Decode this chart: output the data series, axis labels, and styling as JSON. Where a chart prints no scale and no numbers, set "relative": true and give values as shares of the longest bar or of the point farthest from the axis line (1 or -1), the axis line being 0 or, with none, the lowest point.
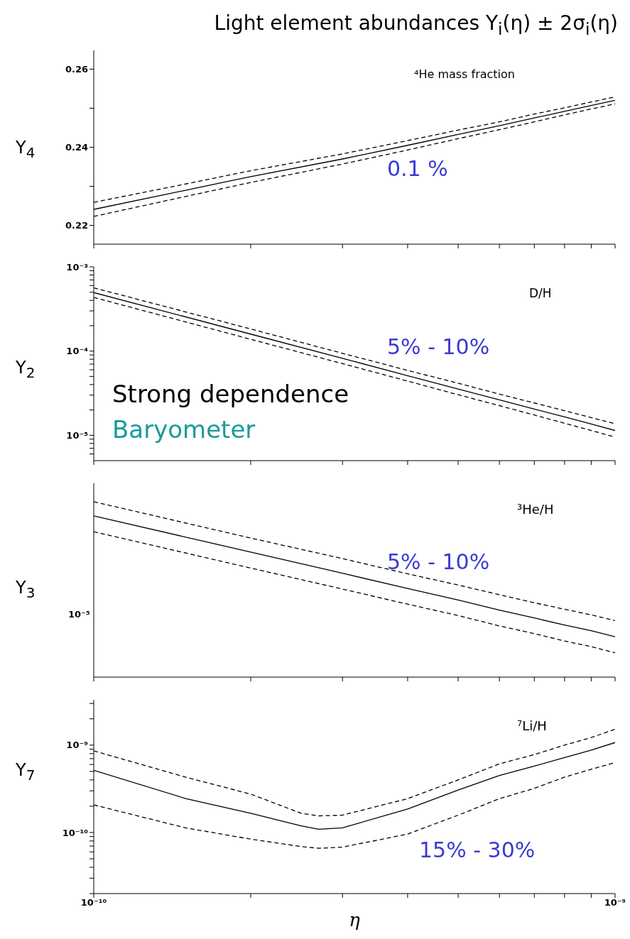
{
  "chart_data": [
    {
      "type": "line",
      "title": "Light element abundances  Y$_{i}$(η) ± 2σ$_{i}$(η)",
      "ylabel": "Y$_{4}$",
      "annotations": [
        "⁴He mass fraction",
        "0.1 %"
      ],
      "log": "x",
      "marker": "none",
      "line_style": "solid",
      "tick_labels": "y",
      "x": [
        1e-10,
        1.5e-10,
        2e-10,
        3e-10,
        4e-10,
        5e-10,
        6e-10,
        7e-10,
        8e-10,
        9e-10,
        1e-09
      ],
      "series": [
        {
          "color": "#000000",
          "values": [
            0.2241,
            0.229,
            0.2325,
            0.237,
            0.2405,
            0.2433,
            0.2455,
            0.2475,
            0.2492,
            0.2507,
            0.252
          ]
        },
        {
          "color": "#000000",
          "line_style": "dashed",
          "values": [
            0.2259,
            0.2306,
            0.234,
            0.2383,
            0.2417,
            0.2444,
            0.2465,
            0.2485,
            0.2501,
            0.2516,
            0.2529
          ]
        },
        {
          "color": "#000000",
          "line_style": "dashed",
          "values": [
            0.2223,
            0.2274,
            0.231,
            0.2357,
            0.2393,
            0.2422,
            0.2445,
            0.2465,
            0.2483,
            0.2498,
            0.2511
          ]
        }
      ],
      "xlim": [
        1e-10,
        1e-09
      ],
      "xticks": [
        {
          "value": 1e-10,
          "label": null
        },
        {
          "value": 2e-10,
          "label": null
        },
        {
          "value": 3e-10,
          "label": null
        },
        {
          "value": 4e-10,
          "label": null
        },
        {
          "value": 5e-10,
          "label": null
        },
        {
          "value": 6e-10,
          "label": null
        },
        {
          "value": 7e-10,
          "label": null
        },
        {
          "value": 8e-10,
          "label": null
        },
        {
          "value": 9e-10,
          "label": null
        },
        {
          "value": 1e-09,
          "label": null
        }
      ],
      "ylim": [
        0.2152,
        0.2648
      ],
      "yticks": [
        0.22,
        {
          "value": 0.23,
          "label": null
        },
        0.24,
        {
          "value": 0.25,
          "label": null
        },
        0.26
      ]
    },
    {
      "type": "line",
      "ylabel": "Y$_{2}$",
      "annotations": [
        "D/H",
        "5% - 10%",
        "Strong dependence",
        "Baryometer"
      ],
      "log": "xy",
      "marker": "none",
      "line_style": "solid",
      "tick_labels": "y",
      "x": [
        1e-10,
        2e-10,
        3e-10,
        4e-10,
        5e-10,
        6e-10,
        7e-10,
        8e-10,
        9e-10,
        1e-09
      ],
      "series": [
        {
          "color": "#000000",
          "values": [
            0.000495,
            0.000159,
            8.2e-05,
            5.1e-05,
            3.55e-05,
            2.63e-05,
            2.05e-05,
            1.65e-05,
            1.36e-05,
            1.14e-05
          ]
        },
        {
          "color": "#000000",
          "line_style": "dashed",
          "values": [
            0.000564,
            0.000183,
            9.4e-05,
            5.9e-05,
            4.15e-05,
            3.08e-05,
            2.42e-05,
            1.96e-05,
            1.62e-05,
            1.37e-05
          ]
        },
        {
          "color": "#000000",
          "line_style": "dashed",
          "values": [
            0.000434,
            0.000138,
            7.1e-05,
            4.4e-05,
            3.03e-05,
            2.25e-05,
            1.74e-05,
            1.39e-05,
            1.14e-05,
            9.5e-06
          ]
        }
      ],
      "xlim": [
        1e-10,
        1e-09
      ],
      "xticks": [
        {
          "value": 1e-10,
          "label": null
        },
        {
          "value": 2e-10,
          "label": null
        },
        {
          "value": 3e-10,
          "label": null
        },
        {
          "value": 4e-10,
          "label": null
        },
        {
          "value": 5e-10,
          "label": null
        },
        {
          "value": 6e-10,
          "label": null
        },
        {
          "value": 7e-10,
          "label": null
        },
        {
          "value": 8e-10,
          "label": null
        },
        {
          "value": 9e-10,
          "label": null
        },
        {
          "value": 1e-09,
          "label": null
        }
      ],
      "ylim": [
        5e-06,
        0.001
      ],
      "yticks": [
        {
          "value": 6e-06,
          "label": null
        },
        {
          "value": 7e-06,
          "label": null
        },
        {
          "value": 8e-06,
          "label": null
        },
        {
          "value": 9e-06,
          "label": null
        },
        {
          "value": 1e-05,
          "label": "10⁻⁵"
        },
        {
          "value": 2e-05,
          "label": null
        },
        {
          "value": 3e-05,
          "label": null
        },
        {
          "value": 4e-05,
          "label": null
        },
        {
          "value": 5e-05,
          "label": null
        },
        {
          "value": 6e-05,
          "label": null
        },
        {
          "value": 7e-05,
          "label": null
        },
        {
          "value": 8e-05,
          "label": null
        },
        {
          "value": 9e-05,
          "label": null
        },
        {
          "value": 0.0001,
          "label": "10⁻⁴"
        },
        {
          "value": 0.0002,
          "label": null
        },
        {
          "value": 0.0003,
          "label": null
        },
        {
          "value": 0.0004,
          "label": null
        },
        {
          "value": 0.0005,
          "label": null
        },
        {
          "value": 0.0006,
          "label": null
        },
        {
          "value": 0.0007,
          "label": null
        },
        {
          "value": 0.0008,
          "label": null
        },
        {
          "value": 0.0009,
          "label": null
        },
        {
          "value": 0.001,
          "label": "10⁻³"
        }
      ]
    },
    {
      "type": "line",
      "ylabel": "Y$_{3}$",
      "annotations": [
        "³He/H",
        "5% - 10%",
        "10⁻⁵"
      ],
      "log": "x",
      "relative": true,
      "marker": "none",
      "line_style": "solid",
      "x": [
        1e-10,
        2e-10,
        3e-10,
        4e-10,
        5e-10,
        6e-10,
        7e-10,
        8e-10,
        9e-10,
        1e-09
      ],
      "series": [
        {
          "color": "#000000",
          "values": [
            0.919,
            0.713,
            0.592,
            0.505,
            0.44,
            0.382,
            0.337,
            0.297,
            0.265,
            0.23
          ]
        },
        {
          "color": "#000000",
          "line_style": "dashed",
          "values": [
            1,
            0.793,
            0.676,
            0.589,
            0.525,
            0.47,
            0.424,
            0.387,
            0.355,
            0.322
          ]
        },
        {
          "color": "#000000",
          "line_style": "dashed",
          "values": [
            0.829,
            0.622,
            0.502,
            0.416,
            0.351,
            0.292,
            0.248,
            0.206,
            0.174,
            0.139
          ]
        }
      ],
      "xlim": [
        1e-10,
        1e-09
      ],
      "xticks": [
        {
          "value": 1e-10,
          "label": null
        },
        {
          "value": 2e-10,
          "label": null
        },
        {
          "value": 3e-10,
          "label": null
        },
        {
          "value": 4e-10,
          "label": null
        },
        {
          "value": 5e-10,
          "label": null
        },
        {
          "value": 6e-10,
          "label": null
        },
        {
          "value": 7e-10,
          "label": null
        },
        {
          "value": 8e-10,
          "label": null
        },
        {
          "value": 9e-10,
          "label": null
        },
        {
          "value": 1e-09,
          "label": null
        }
      ],
      "tick_labels": "y"
    },
    {
      "type": "line",
      "ylabel": "Y$_{7}$",
      "xlabel": "η",
      "annotations": [
        "⁷Li/H",
        "15% - 30%"
      ],
      "log": "xy",
      "marker": "none",
      "line_style": "solid",
      "x": [
        1e-10,
        1.5e-10,
        2e-10,
        2.5e-10,
        2.7e-10,
        3e-10,
        4e-10,
        5e-10,
        6e-10,
        7e-10,
        8e-10,
        9e-10,
        1e-09
      ],
      "series": [
        {
          "color": "#000000",
          "values": [
            5.15e-10,
            2.45e-10,
            1.66e-10,
            1.19e-10,
            1.09e-10,
            1.13e-10,
            1.86e-10,
            3.06e-10,
            4.5e-10,
            5.75e-10,
            7.2e-10,
            8.75e-10,
            1.07e-09
          ]
        },
        {
          "color": "#000000",
          "line_style": "dashed",
          "values": [
            8.6e-10,
            4.3e-10,
            2.75e-10,
            1.66e-10,
            1.55e-10,
            1.58e-10,
            2.44e-10,
            4e-10,
            6.1e-10,
            7.8e-10,
            1e-09,
            1.22e-09,
            1.52e-09
          ]
        },
        {
          "color": "#000000",
          "line_style": "dashed",
          "values": [
            2.07e-10,
            1.13e-10,
            8.4e-11,
            6.9e-11,
            6.6e-11,
            6.8e-11,
            9.6e-11,
            1.58e-10,
            2.44e-10,
            3.2e-10,
            4.3e-10,
            5.3e-10,
            6.3e-10
          ]
        }
      ],
      "xlim": [
        1e-10,
        1e-09
      ],
      "xticks": [
        {
          "value": 1e-10,
          "label": "10⁻¹⁰"
        },
        {
          "value": 2e-10,
          "label": null
        },
        {
          "value": 3e-10,
          "label": null
        },
        {
          "value": 4e-10,
          "label": null
        },
        {
          "value": 5e-10,
          "label": null
        },
        {
          "value": 6e-10,
          "label": null
        },
        {
          "value": 7e-10,
          "label": null
        },
        {
          "value": 8e-10,
          "label": null
        },
        {
          "value": 9e-10,
          "label": null
        },
        {
          "value": 1e-09,
          "label": "10⁻⁹"
        }
      ],
      "ylim": [
        2e-11,
        3.3e-09
      ],
      "yticks": [
        {
          "value": 2e-11,
          "label": null
        },
        {
          "value": 3e-11,
          "label": null
        },
        {
          "value": 4e-11,
          "label": null
        },
        {
          "value": 5e-11,
          "label": null
        },
        {
          "value": 6e-11,
          "label": null
        },
        {
          "value": 7e-11,
          "label": null
        },
        {
          "value": 8e-11,
          "label": null
        },
        {
          "value": 9e-11,
          "label": null
        },
        {
          "value": 1e-10,
          "label": "10⁻¹⁰"
        },
        {
          "value": 2e-10,
          "label": null
        },
        {
          "value": 3e-10,
          "label": null
        },
        {
          "value": 4e-10,
          "label": null
        },
        {
          "value": 5e-10,
          "label": null
        },
        {
          "value": 6e-10,
          "label": null
        },
        {
          "value": 7e-10,
          "label": null
        },
        {
          "value": 8e-10,
          "label": null
        },
        {
          "value": 9e-10,
          "label": null
        },
        {
          "value": 1e-09,
          "label": "10⁻⁹"
        },
        {
          "value": 2e-09,
          "label": null
        },
        {
          "value": 3e-09,
          "label": null
        }
      ]
    }
  ]
}
